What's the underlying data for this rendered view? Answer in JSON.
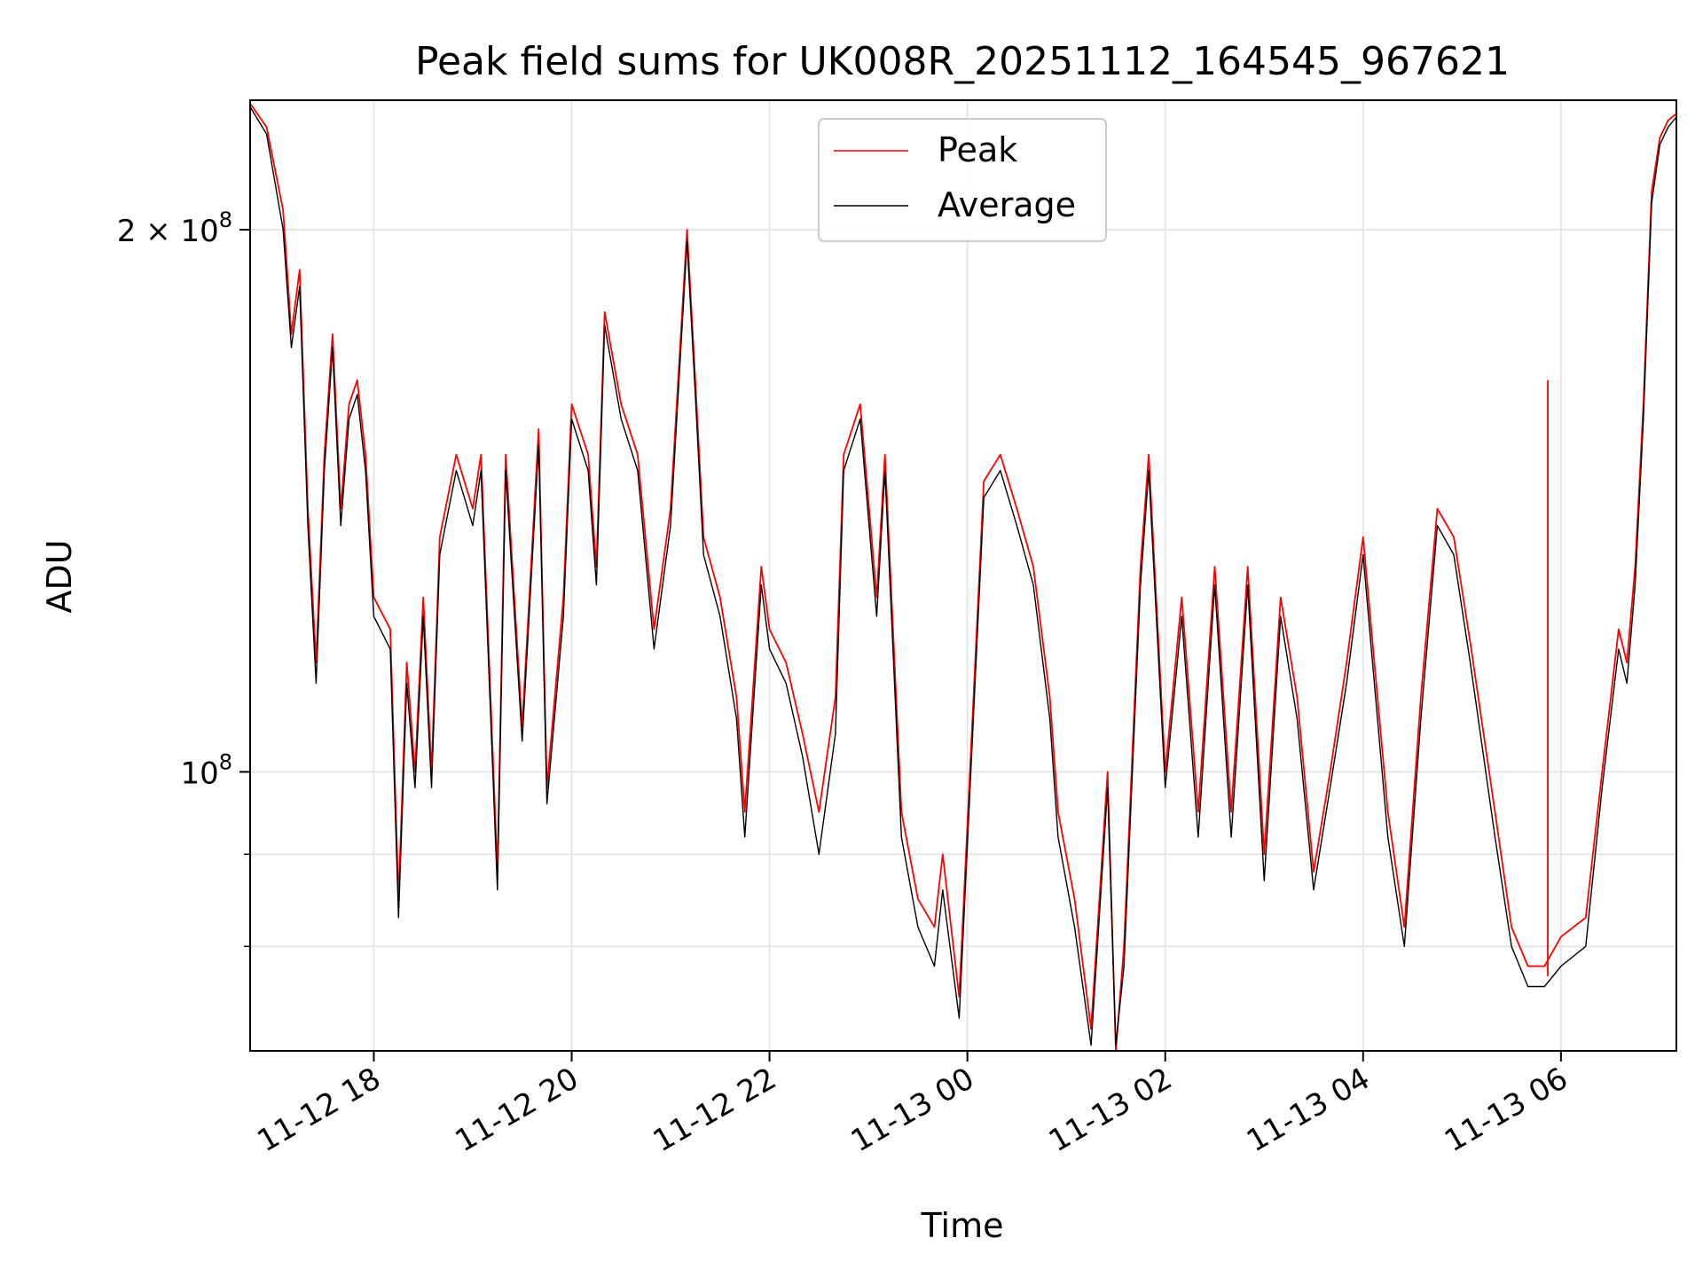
{
  "chart_data": {
    "type": "line",
    "title": "Peak field sums for UK008R_20251112_164545_967621",
    "xlabel": "Time",
    "ylabel": "ADU",
    "yscale": "log",
    "xlim": [
      "2025-11-12 16:45",
      "2025-11-13 07:10"
    ],
    "ylim": [
      70000000,
      236000000
    ],
    "x_ticks": [
      {
        "value": "2025-11-12 18:00",
        "label": "11-12 18"
      },
      {
        "value": "2025-11-12 20:00",
        "label": "11-12 20"
      },
      {
        "value": "2025-11-12 22:00",
        "label": "11-12 22"
      },
      {
        "value": "2025-11-13 00:00",
        "label": "11-13 00"
      },
      {
        "value": "2025-11-13 02:00",
        "label": "11-13 02"
      },
      {
        "value": "2025-11-13 04:00",
        "label": "11-13 04"
      },
      {
        "value": "2025-11-13 06:00",
        "label": "11-13 06"
      }
    ],
    "y_ticks": [
      {
        "value": 100000000,
        "base": "10",
        "exp": "8",
        "mantissa": ""
      },
      {
        "value": 200000000,
        "base": "10",
        "exp": "8",
        "mantissa": "2 × "
      }
    ],
    "y_minor_ticks": [
      80000000,
      90000000
    ],
    "grid": true,
    "legend_position": "top-center",
    "x": [
      "2025-11-12 16:45",
      "2025-11-12 16:55",
      "2025-11-12 17:05",
      "2025-11-12 17:10",
      "2025-11-12 17:15",
      "2025-11-12 17:20",
      "2025-11-12 17:25",
      "2025-11-12 17:30",
      "2025-11-12 17:35",
      "2025-11-12 17:40",
      "2025-11-12 17:45",
      "2025-11-12 17:50",
      "2025-11-12 17:55",
      "2025-11-12 18:00",
      "2025-11-12 18:10",
      "2025-11-12 18:15",
      "2025-11-12 18:20",
      "2025-11-12 18:25",
      "2025-11-12 18:30",
      "2025-11-12 18:35",
      "2025-11-12 18:40",
      "2025-11-12 18:50",
      "2025-11-12 19:00",
      "2025-11-12 19:05",
      "2025-11-12 19:15",
      "2025-11-12 19:20",
      "2025-11-12 19:30",
      "2025-11-12 19:40",
      "2025-11-12 19:45",
      "2025-11-12 19:55",
      "2025-11-12 20:00",
      "2025-11-12 20:10",
      "2025-11-12 20:15",
      "2025-11-12 20:20",
      "2025-11-12 20:30",
      "2025-11-12 20:40",
      "2025-11-12 20:50",
      "2025-11-12 21:00",
      "2025-11-12 21:10",
      "2025-11-12 21:15",
      "2025-11-12 21:20",
      "2025-11-12 21:30",
      "2025-11-12 21:40",
      "2025-11-12 21:45",
      "2025-11-12 21:55",
      "2025-11-12 22:00",
      "2025-11-12 22:10",
      "2025-11-12 22:20",
      "2025-11-12 22:30",
      "2025-11-12 22:40",
      "2025-11-12 22:45",
      "2025-11-12 22:55",
      "2025-11-12 23:05",
      "2025-11-12 23:10",
      "2025-11-12 23:20",
      "2025-11-12 23:30",
      "2025-11-12 23:40",
      "2025-11-12 23:45",
      "2025-11-12 23:55",
      "2025-11-13 00:10",
      "2025-11-13 00:20",
      "2025-11-13 00:30",
      "2025-11-13 00:40",
      "2025-11-13 00:50",
      "2025-11-13 00:55",
      "2025-11-13 01:05",
      "2025-11-13 01:15",
      "2025-11-13 01:25",
      "2025-11-13 01:30",
      "2025-11-13 01:35",
      "2025-11-13 01:45",
      "2025-11-13 01:50",
      "2025-11-13 02:00",
      "2025-11-13 02:10",
      "2025-11-13 02:20",
      "2025-11-13 02:30",
      "2025-11-13 02:40",
      "2025-11-13 02:50",
      "2025-11-13 03:00",
      "2025-11-13 03:10",
      "2025-11-13 03:20",
      "2025-11-13 03:30",
      "2025-11-13 03:40",
      "2025-11-13 03:50",
      "2025-11-13 04:00",
      "2025-11-13 04:05",
      "2025-11-13 04:15",
      "2025-11-13 04:25",
      "2025-11-13 04:35",
      "2025-11-13 04:45",
      "2025-11-13 04:55",
      "2025-11-13 05:05",
      "2025-11-13 05:20",
      "2025-11-13 05:30",
      "2025-11-13 05:40",
      "2025-11-13 05:50",
      "2025-11-13 06:00",
      "2025-11-13 06:15",
      "2025-11-13 06:25",
      "2025-11-13 06:35",
      "2025-11-13 06:40",
      "2025-11-13 06:45",
      "2025-11-13 06:50",
      "2025-11-13 06:55",
      "2025-11-13 07:00",
      "2025-11-13 07:05",
      "2025-11-13 07:10"
    ],
    "series": [
      {
        "name": "Peak",
        "color": "#ff0000",
        "values": [
          235000000,
          228000000,
          205000000,
          175000000,
          190000000,
          140000000,
          115000000,
          150000000,
          175000000,
          140000000,
          160000000,
          165000000,
          150000000,
          125000000,
          120000000,
          85000000,
          115000000,
          100000000,
          125000000,
          100000000,
          135000000,
          150000000,
          140000000,
          150000000,
          88000000,
          150000000,
          106000000,
          155000000,
          98000000,
          125000000,
          160000000,
          150000000,
          130000000,
          180000000,
          160000000,
          150000000,
          120000000,
          140000000,
          200000000,
          165000000,
          135000000,
          125000000,
          110000000,
          95000000,
          130000000,
          120000000,
          115000000,
          105000000,
          95000000,
          110000000,
          150000000,
          160000000,
          125000000,
          150000000,
          95000000,
          85000000,
          82000000,
          90000000,
          75000000,
          145000000,
          150000000,
          140000000,
          130000000,
          110000000,
          95000000,
          85000000,
          72000000,
          100000000,
          70000000,
          80000000,
          130000000,
          150000000,
          100000000,
          125000000,
          95000000,
          130000000,
          95000000,
          130000000,
          90000000,
          125000000,
          110000000,
          88000000,
          100000000,
          115000000,
          135000000,
          120000000,
          95000000,
          82000000,
          110000000,
          140000000,
          135000000,
          118000000,
          95000000,
          82000000,
          78000000,
          78000000,
          81000000,
          83000000,
          100000000,
          120000000,
          115000000,
          130000000,
          160000000,
          210000000,
          225000000,
          230000000,
          232000000
        ]
      },
      {
        "name": "Average",
        "color": "#000000",
        "values": [
          234000000,
          226000000,
          200000000,
          172000000,
          186000000,
          137000000,
          112000000,
          147000000,
          172000000,
          137000000,
          157000000,
          162000000,
          147000000,
          122000000,
          117000000,
          83000000,
          112000000,
          98000000,
          122000000,
          98000000,
          132000000,
          147000000,
          137000000,
          147000000,
          86000000,
          147000000,
          104000000,
          152000000,
          96000000,
          122000000,
          157000000,
          147000000,
          127000000,
          177000000,
          157000000,
          147000000,
          117000000,
          137000000,
          197000000,
          162000000,
          132000000,
          122000000,
          107000000,
          92000000,
          127000000,
          117000000,
          112000000,
          102000000,
          90000000,
          105000000,
          147000000,
          157000000,
          122000000,
          147000000,
          92000000,
          82000000,
          78000000,
          86000000,
          73000000,
          142000000,
          147000000,
          137000000,
          127000000,
          107000000,
          92000000,
          82000000,
          70500000,
          98000000,
          70500000,
          78000000,
          127000000,
          147000000,
          98000000,
          122000000,
          92000000,
          127000000,
          92000000,
          127000000,
          87000000,
          122000000,
          107000000,
          86000000,
          98000000,
          112000000,
          132000000,
          117000000,
          92000000,
          80000000,
          107000000,
          137000000,
          132000000,
          115000000,
          92000000,
          80000000,
          76000000,
          76000000,
          78000000,
          80000000,
          98000000,
          117000000,
          112000000,
          127000000,
          157000000,
          207000000,
          223000000,
          228000000,
          231000000
        ]
      }
    ],
    "annotations": [
      {
        "type": "spike",
        "series": "Peak",
        "x": "2025-11-13 05:52",
        "y_from": 77000000,
        "y_to": 165000000
      }
    ]
  }
}
